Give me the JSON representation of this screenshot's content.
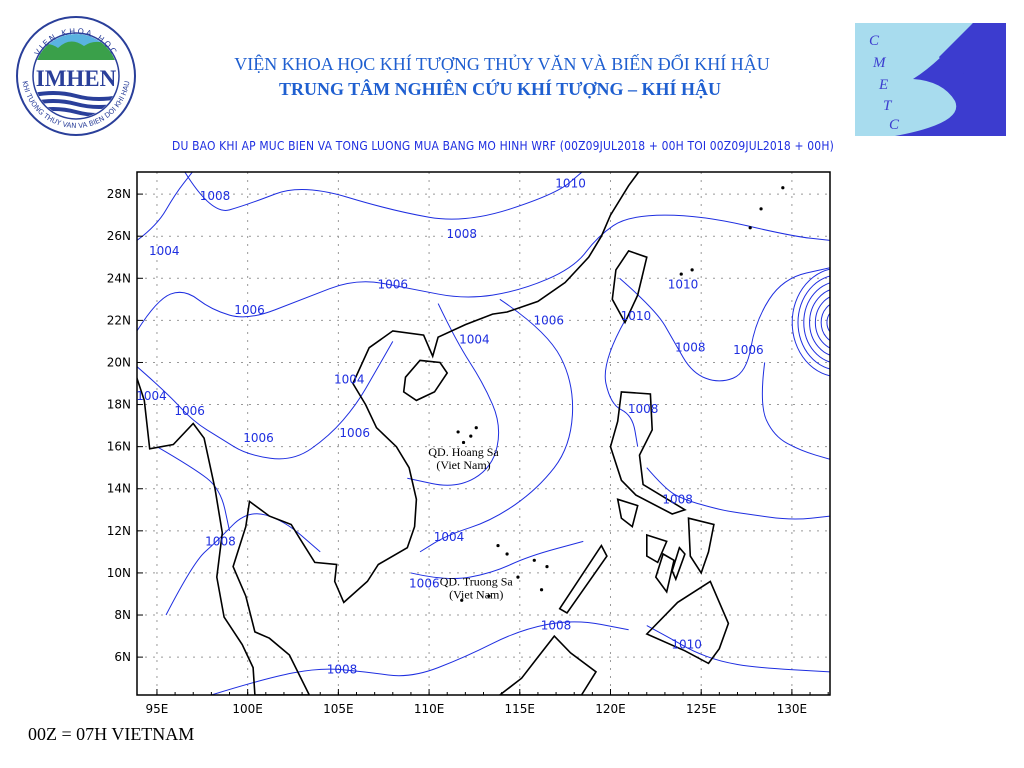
{
  "header": {
    "title_line1": "VIỆN KHOA HỌC KHÍ TƯỢNG THỦY VĂN VÀ BIẾN ĐỔI KHÍ HẬU",
    "title_line2": "TRUNG TÂM NGHIÊN CỨU KHÍ TƯỢNG – KHÍ HẬU",
    "subtitle": "DU BAO KHI AP MUC BIEN VA TONG LUONG MUA BANG MO HINH WRF (00Z09JUL2018 + 00H TOI 00Z09JUL2018 + 00H)"
  },
  "logos": {
    "left": {
      "text": "IMHEN",
      "ring_top": "VIEN KHOA HOC",
      "ring_bottom": "KHI TUONG THUY VAN VA BIEN DOI KHI HAU"
    },
    "right": {
      "text": "CMETC"
    }
  },
  "map": {
    "lon_range": [
      93.9,
      132.1
    ],
    "lat_range": [
      4.2,
      29.05
    ],
    "lon_ticks": [
      {
        "v": 95,
        "label": "95E"
      },
      {
        "v": 100,
        "label": "100E"
      },
      {
        "v": 105,
        "label": "105E"
      },
      {
        "v": 110,
        "label": "110E"
      },
      {
        "v": 115,
        "label": "115E"
      },
      {
        "v": 120,
        "label": "120E"
      },
      {
        "v": 125,
        "label": "125E"
      },
      {
        "v": 130,
        "label": "130E"
      }
    ],
    "lat_ticks": [
      {
        "v": 6,
        "label": "6N"
      },
      {
        "v": 8,
        "label": "8N"
      },
      {
        "v": 10,
        "label": "10N"
      },
      {
        "v": 12,
        "label": "12N"
      },
      {
        "v": 14,
        "label": "14N"
      },
      {
        "v": 16,
        "label": "16N"
      },
      {
        "v": 18,
        "label": "18N"
      },
      {
        "v": 20,
        "label": "20N"
      },
      {
        "v": 22,
        "label": "22N"
      },
      {
        "v": 24,
        "label": "24N"
      },
      {
        "v": 26,
        "label": "26N"
      },
      {
        "v": 28,
        "label": "28N"
      }
    ],
    "grid": true,
    "colors": {
      "contour": "#1e2ee0",
      "coast": "#000000",
      "grid": "#999999"
    },
    "contour_labels": [
      {
        "text": "1008",
        "lon": 98.2,
        "lat": 27.9
      },
      {
        "text": "1004",
        "lon": 95.4,
        "lat": 25.3
      },
      {
        "text": "1006",
        "lon": 100.1,
        "lat": 22.5
      },
      {
        "text": "1006",
        "lon": 108.0,
        "lat": 23.7
      },
      {
        "text": "1008",
        "lon": 111.8,
        "lat": 26.1
      },
      {
        "text": "1010",
        "lon": 117.8,
        "lat": 28.5
      },
      {
        "text": "1010",
        "lon": 124.0,
        "lat": 23.7
      },
      {
        "text": "1010",
        "lon": 121.4,
        "lat": 22.2
      },
      {
        "text": "1006",
        "lon": 116.6,
        "lat": 22.0
      },
      {
        "text": "1004",
        "lon": 112.5,
        "lat": 21.1
      },
      {
        "text": "1008",
        "lon": 124.4,
        "lat": 20.7
      },
      {
        "text": "1006",
        "lon": 127.6,
        "lat": 20.6
      },
      {
        "text": "1004",
        "lon": 105.6,
        "lat": 19.2
      },
      {
        "text": "1004",
        "lon": 94.7,
        "lat": 18.4
      },
      {
        "text": "1006",
        "lon": 96.8,
        "lat": 17.7
      },
      {
        "text": "1006",
        "lon": 100.6,
        "lat": 16.4
      },
      {
        "text": "1006",
        "lon": 105.9,
        "lat": 16.65
      },
      {
        "text": "1008",
        "lon": 121.8,
        "lat": 17.8
      },
      {
        "text": "1008",
        "lon": 123.7,
        "lat": 13.5
      },
      {
        "text": "1004",
        "lon": 111.1,
        "lat": 11.7
      },
      {
        "text": "1008",
        "lon": 98.5,
        "lat": 11.5
      },
      {
        "text": "1006",
        "lon": 110.4,
        "lat": 9.5
      },
      {
        "text": "1008",
        "lon": 117.0,
        "lat": 7.5
      },
      {
        "text": "1010",
        "lon": 124.2,
        "lat": 6.6
      },
      {
        "text": "1008",
        "lon": 105.2,
        "lat": 5.4
      }
    ],
    "places": [
      {
        "name": "QD. Hoang Sa",
        "sub": "(Viet Nam)",
        "lon": 111.9,
        "lat": 15.75
      },
      {
        "name": "QD. Truong Sa",
        "sub": "(Viet Nam)",
        "lon": 112.6,
        "lat": 9.6
      }
    ]
  },
  "footer": "00Z = 07H VIETNAM"
}
